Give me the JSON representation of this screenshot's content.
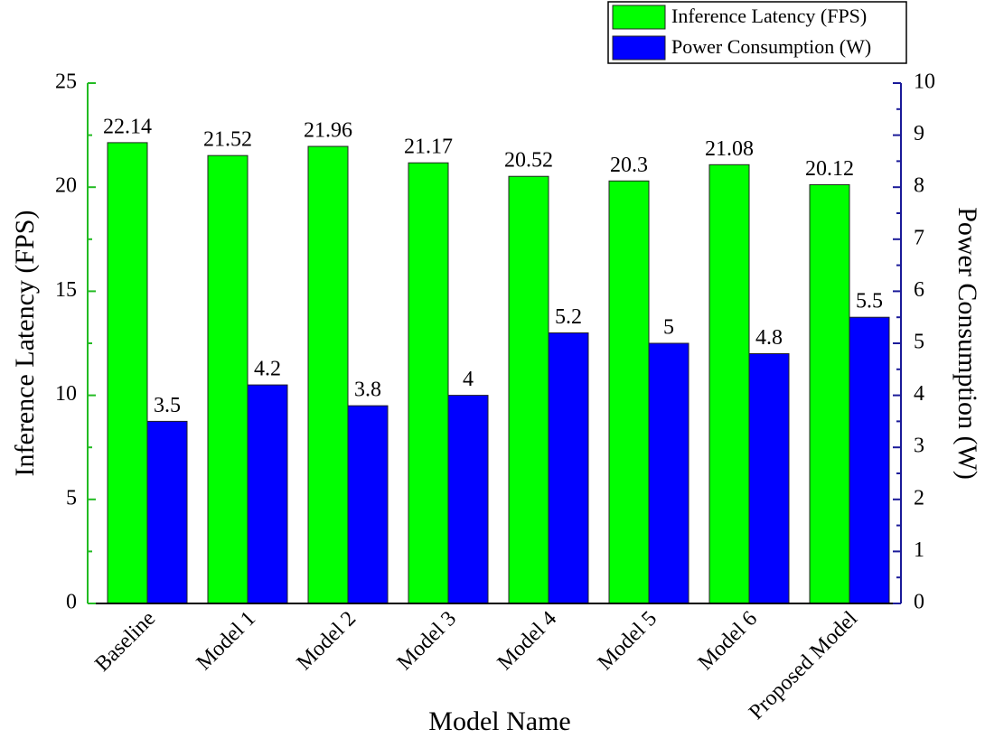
{
  "chart_data": {
    "type": "bar",
    "xlabel": "Model Name",
    "ylabel": "Inference Latency (FPS)",
    "y2label": "Power Consumption (W)",
    "categories": [
      "Baseline",
      "Model 1",
      "Model 2",
      "Model 3",
      "Model 4",
      "Model 5",
      "Model 6",
      "Proposed Model"
    ],
    "series": [
      {
        "name": "Inference Latency (FPS)",
        "color": "#00ff00",
        "values": [
          22.14,
          21.52,
          21.96,
          21.17,
          20.52,
          20.3,
          21.08,
          20.12
        ]
      },
      {
        "name": "Power Consumption (W)",
        "color": "#0000ff",
        "axis": "y2",
        "values": [
          3.5,
          4.2,
          3.8,
          4,
          5.2,
          5,
          4.8,
          5.5
        ]
      }
    ],
    "ylim": [
      0,
      25
    ],
    "yticks": [
      0,
      5,
      10,
      15,
      20,
      25
    ],
    "y2lim": [
      0,
      10
    ],
    "y2ticks": [
      0,
      1,
      2,
      3,
      4,
      5,
      6,
      7,
      8,
      9,
      10
    ],
    "legend": "upper right"
  }
}
